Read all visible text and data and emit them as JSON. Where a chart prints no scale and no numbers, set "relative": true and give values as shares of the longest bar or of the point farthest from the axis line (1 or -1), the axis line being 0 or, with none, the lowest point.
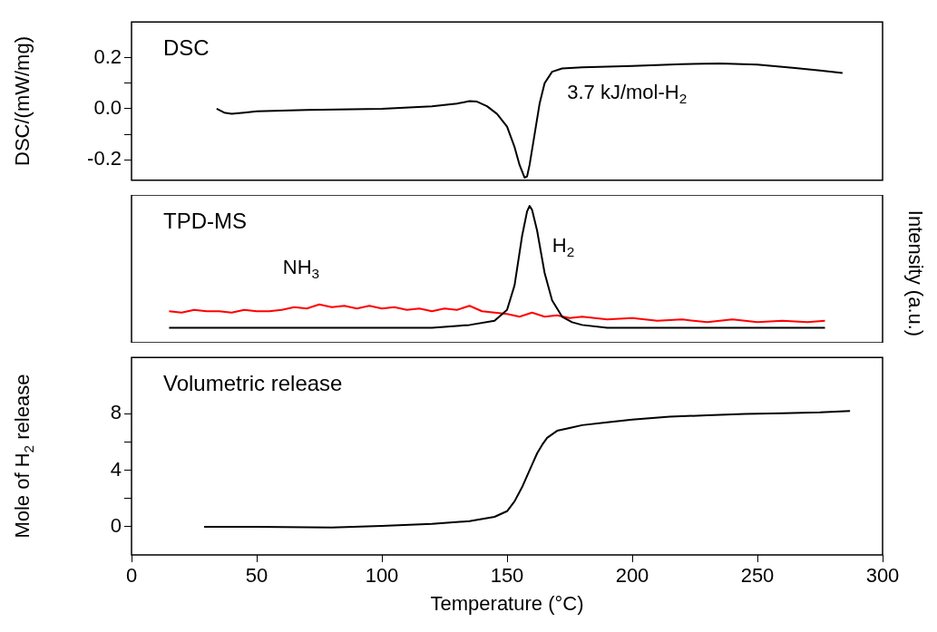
{
  "chart_data": [
    {
      "type": "line",
      "title": "DSC",
      "ylabel": "DSC/(mW/mg)",
      "annotations": [
        "3.7 kJ/mol-H$_{2}$"
      ],
      "xlim": [
        0,
        300
      ],
      "xticks": [
        0,
        50,
        100,
        150,
        200,
        250,
        300
      ],
      "ylim": [
        -0.28,
        0.34
      ],
      "yticks": [
        {
          "value": -0.2,
          "label": "-0.2"
        },
        {
          "value": -0.1,
          "label": null
        },
        {
          "value": 0,
          "label": "0.0"
        },
        {
          "value": 0.1,
          "label": null
        },
        {
          "value": 0.2,
          "label": "0.2"
        }
      ],
      "tick_labels": "y",
      "series": [
        {
          "color": "#000000",
          "x": [
            34,
            37,
            40,
            45,
            50,
            70,
            100,
            120,
            130,
            135,
            138,
            142,
            146,
            150,
            153,
            155,
            157,
            158,
            159,
            161,
            163,
            165,
            168,
            172,
            180,
            200,
            220,
            235,
            250,
            265,
            275,
            284
          ],
          "values": [
            0.0,
            -0.015,
            -0.02,
            -0.015,
            -0.01,
            -0.005,
            0.0,
            0.01,
            0.02,
            0.03,
            0.028,
            0.01,
            -0.02,
            -0.07,
            -0.15,
            -0.22,
            -0.27,
            -0.265,
            -0.22,
            -0.1,
            0.02,
            0.1,
            0.145,
            0.158,
            0.162,
            0.168,
            0.175,
            0.177,
            0.173,
            0.16,
            0.15,
            0.14
          ]
        }
      ]
    },
    {
      "type": "line",
      "title": "TPD-MS",
      "ylabel": "Intensity (a.u.)",
      "relative": true,
      "xlim": [
        0,
        300
      ],
      "xticks": [
        0,
        50,
        100,
        150,
        200,
        250,
        300
      ],
      "tick_labels": false,
      "series": [
        {
          "name": "H$_{2}$",
          "color": "#000000",
          "x": [
            15,
            60,
            120,
            135,
            145,
            150,
            153,
            156,
            158,
            159,
            160,
            162,
            165,
            168,
            172,
            176,
            180,
            190,
            200,
            240,
            277
          ],
          "values": [
            0.11,
            0.11,
            0.11,
            0.13,
            0.16,
            0.24,
            0.42,
            0.78,
            0.96,
            1.0,
            0.97,
            0.82,
            0.51,
            0.31,
            0.19,
            0.15,
            0.13,
            0.11,
            0.11,
            0.11,
            0.11
          ]
        },
        {
          "name": "NH$_{3}$",
          "color": "#ff0000",
          "x": [
            15,
            20,
            25,
            30,
            35,
            40,
            45,
            50,
            55,
            60,
            65,
            70,
            75,
            80,
            85,
            90,
            95,
            100,
            105,
            110,
            115,
            120,
            125,
            130,
            135,
            140,
            145,
            150,
            155,
            160,
            165,
            170,
            175,
            180,
            190,
            200,
            210,
            220,
            230,
            240,
            250,
            260,
            270,
            277
          ],
          "values": [
            0.23,
            0.22,
            0.24,
            0.23,
            0.23,
            0.22,
            0.24,
            0.23,
            0.23,
            0.24,
            0.26,
            0.25,
            0.28,
            0.26,
            0.27,
            0.25,
            0.27,
            0.25,
            0.26,
            0.24,
            0.25,
            0.23,
            0.25,
            0.24,
            0.27,
            0.23,
            0.22,
            0.21,
            0.19,
            0.22,
            0.19,
            0.2,
            0.18,
            0.19,
            0.17,
            0.18,
            0.16,
            0.17,
            0.15,
            0.17,
            0.15,
            0.16,
            0.15,
            0.16
          ]
        }
      ]
    },
    {
      "type": "line",
      "title": "Volumetric release",
      "ylabel": "Mole of H$_{2}$ release",
      "xlabel": "Temperature (°C)",
      "xlim": [
        0,
        300
      ],
      "xticks": [
        0,
        50,
        100,
        150,
        200,
        250,
        300
      ],
      "ylim": [
        -2,
        12
      ],
      "yticks": [
        0,
        {
          "value": 2,
          "label": null
        },
        4,
        {
          "value": 6,
          "label": null
        },
        8
      ],
      "series": [
        {
          "color": "#000000",
          "x": [
            29,
            50,
            80,
            100,
            120,
            135,
            145,
            150,
            153,
            156,
            158,
            160,
            162,
            164,
            166,
            170,
            175,
            180,
            190,
            200,
            215,
            230,
            245,
            260,
            275,
            287
          ],
          "values": [
            0.0,
            0.0,
            -0.05,
            0.05,
            0.2,
            0.4,
            0.7,
            1.1,
            1.8,
            2.8,
            3.6,
            4.4,
            5.2,
            5.8,
            6.3,
            6.8,
            7.0,
            7.2,
            7.4,
            7.6,
            7.8,
            7.9,
            8.0,
            8.05,
            8.1,
            8.2
          ]
        }
      ]
    }
  ]
}
